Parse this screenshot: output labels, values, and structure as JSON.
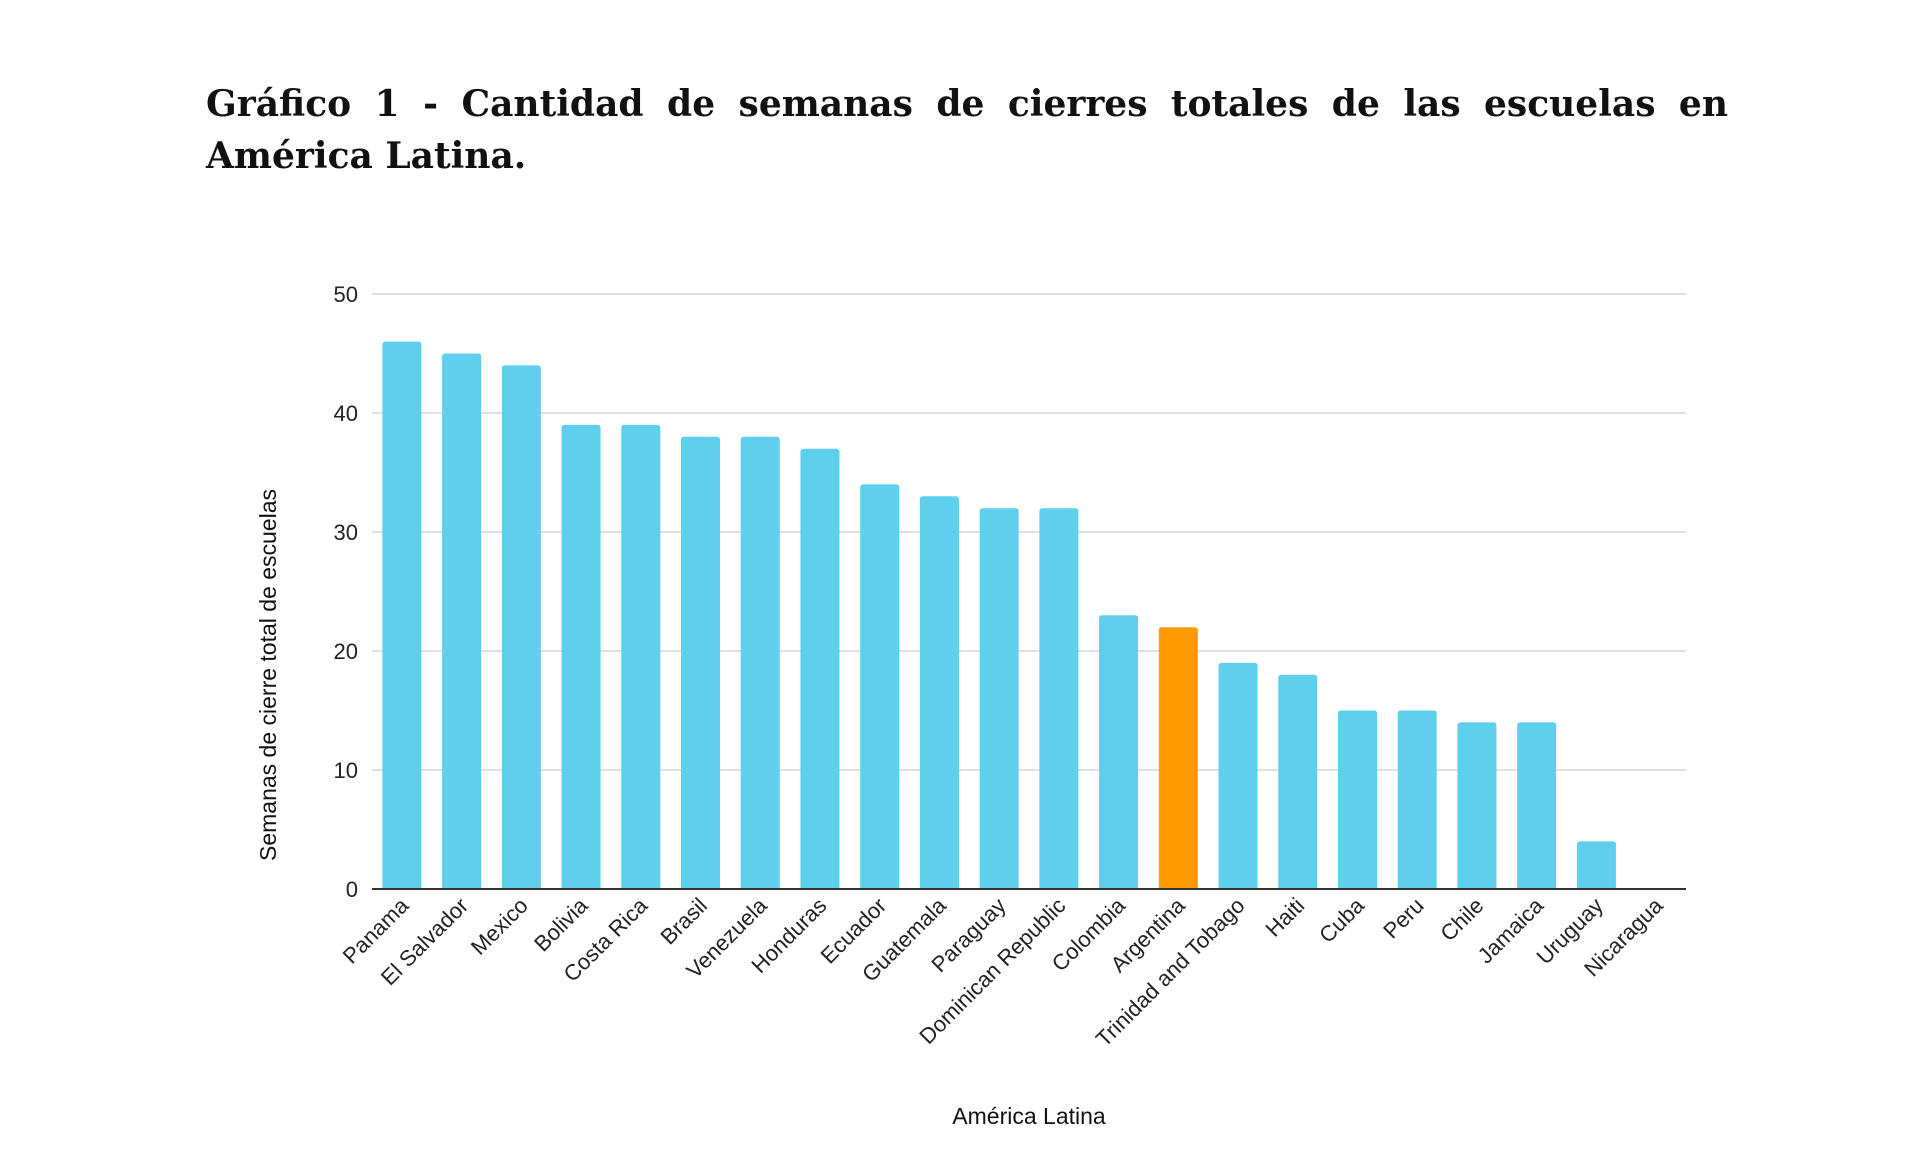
{
  "title": "Gráfico 1 - Cantidad de semanas de cierres totales de las escuelas en América Latina.",
  "colors": {
    "bar": "#5ecfec",
    "highlight": "#ff9b00",
    "grid": "#cfcfcf",
    "axis": "#333333"
  },
  "chart_data": {
    "type": "bar",
    "title": "",
    "xlabel": "América Latina",
    "ylabel": "Semanas de cierre total de escuelas",
    "ylim": [
      0,
      50
    ],
    "yticks": [
      0,
      10,
      20,
      30,
      40,
      50
    ],
    "grid": true,
    "legend": "none",
    "highlight_category": "Argentina",
    "categories": [
      "Panama",
      "El Salvador",
      "Mexico",
      "Bolivia",
      "Costa Rica",
      "Brasil",
      "Venezuela",
      "Honduras",
      "Ecuador",
      "Guatemala",
      "Paraguay",
      "Dominican Republic",
      "Colombia",
      "Argentina",
      "Trinidad and Tobago",
      "Haiti",
      "Cuba",
      "Peru",
      "Chile",
      "Jamaica",
      "Uruguay",
      "Nicaragua"
    ],
    "values": [
      46,
      45,
      44,
      39,
      39,
      38,
      38,
      37,
      34,
      33,
      32,
      32,
      23,
      22,
      19,
      18,
      15,
      15,
      14,
      14,
      4,
      0
    ]
  }
}
